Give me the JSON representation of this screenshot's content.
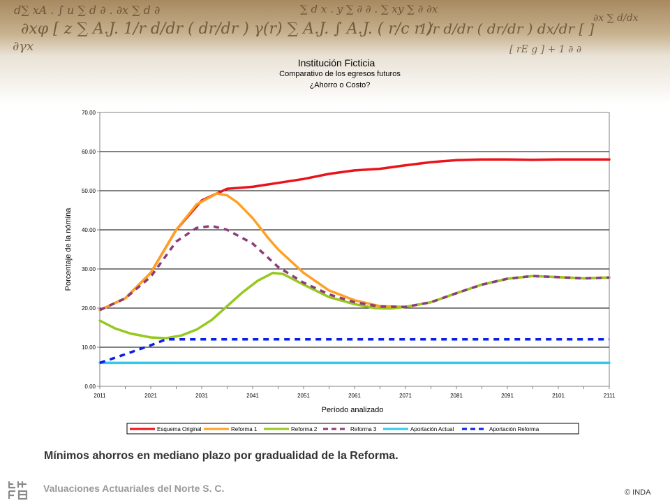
{
  "chart_data": {
    "type": "line",
    "title": "Institución Ficticia",
    "subtitle": "Comparativo de los egresos futuros",
    "subtitle2": "¿Ahorro o Costo?",
    "xlabel": "Período analizado",
    "ylabel": "Porcentaje de la nómina",
    "xlim": [
      2011,
      2111
    ],
    "ylim": [
      0,
      70
    ],
    "x_ticks": [
      "2011",
      "2021",
      "2031",
      "2041",
      "2051",
      "2061",
      "2071",
      "2081",
      "2091",
      "2101",
      "2111"
    ],
    "y_ticks": [
      "0.00",
      "10.00",
      "20.00",
      "30.00",
      "40.00",
      "50.00",
      "60.00",
      "70.00"
    ],
    "grid": true,
    "legend_position": "bottom",
    "series": [
      {
        "name": "Esquema Original",
        "color": "#e8141c",
        "dash": "solid",
        "points": [
          [
            2011,
            19.5
          ],
          [
            2016,
            22.5
          ],
          [
            2021,
            29
          ],
          [
            2026,
            40
          ],
          [
            2031,
            47.5
          ],
          [
            2036,
            50.5
          ],
          [
            2041,
            51
          ],
          [
            2046,
            52
          ],
          [
            2051,
            53
          ],
          [
            2056,
            54.3
          ],
          [
            2061,
            55.2
          ],
          [
            2066,
            55.6
          ],
          [
            2071,
            56.5
          ],
          [
            2076,
            57.3
          ],
          [
            2081,
            57.8
          ],
          [
            2086,
            58
          ],
          [
            2091,
            58
          ],
          [
            2096,
            57.9
          ],
          [
            2101,
            58
          ],
          [
            2106,
            58
          ],
          [
            2111,
            58
          ]
        ]
      },
      {
        "name": "Reforma 1",
        "color": "#ffa024",
        "dash": "solid",
        "points": [
          [
            2011,
            19.5
          ],
          [
            2016,
            22.5
          ],
          [
            2021,
            29
          ],
          [
            2026,
            40
          ],
          [
            2030,
            46.5
          ],
          [
            2034,
            49.3
          ],
          [
            2036,
            48.8
          ],
          [
            2038,
            47
          ],
          [
            2041,
            43
          ],
          [
            2044,
            38
          ],
          [
            2046,
            35
          ],
          [
            2051,
            29
          ],
          [
            2056,
            24.5
          ],
          [
            2061,
            22
          ],
          [
            2066,
            20.5
          ],
          [
            2071,
            20.3
          ],
          [
            2076,
            21.5
          ],
          [
            2081,
            23.8
          ],
          [
            2086,
            26
          ],
          [
            2091,
            27.5
          ],
          [
            2096,
            28.2
          ],
          [
            2101,
            27.9
          ],
          [
            2106,
            27.6
          ],
          [
            2111,
            27.8
          ]
        ]
      },
      {
        "name": "Reforma 2",
        "color": "#96c81e",
        "dash": "solid",
        "points": [
          [
            2011,
            16.8
          ],
          [
            2014,
            14.8
          ],
          [
            2017,
            13.5
          ],
          [
            2021,
            12.5
          ],
          [
            2024,
            12.3
          ],
          [
            2027,
            13
          ],
          [
            2030,
            14.5
          ],
          [
            2033,
            17
          ],
          [
            2036,
            20.5
          ],
          [
            2039,
            24
          ],
          [
            2042,
            27
          ],
          [
            2045,
            29
          ],
          [
            2047,
            28.7
          ],
          [
            2051,
            26
          ],
          [
            2056,
            22.8
          ],
          [
            2061,
            21
          ],
          [
            2065,
            20
          ],
          [
            2068,
            19.9
          ],
          [
            2071,
            20.3
          ],
          [
            2076,
            21.5
          ],
          [
            2081,
            23.8
          ],
          [
            2086,
            26
          ],
          [
            2091,
            27.5
          ],
          [
            2096,
            28.2
          ],
          [
            2101,
            27.9
          ],
          [
            2106,
            27.6
          ],
          [
            2111,
            27.8
          ]
        ]
      },
      {
        "name": "Reforma 3",
        "color": "#8c3c78",
        "dash": "dashed",
        "points": [
          [
            2011,
            19.5
          ],
          [
            2016,
            22.5
          ],
          [
            2021,
            28
          ],
          [
            2026,
            37
          ],
          [
            2030,
            40.5
          ],
          [
            2033,
            41
          ],
          [
            2036,
            40
          ],
          [
            2041,
            36.5
          ],
          [
            2046,
            30.5
          ],
          [
            2051,
            26.5
          ],
          [
            2056,
            23.5
          ],
          [
            2061,
            21.5
          ],
          [
            2066,
            20.4
          ],
          [
            2071,
            20.3
          ],
          [
            2076,
            21.5
          ],
          [
            2081,
            23.8
          ],
          [
            2086,
            26
          ],
          [
            2091,
            27.5
          ],
          [
            2096,
            28.2
          ],
          [
            2101,
            27.9
          ],
          [
            2106,
            27.6
          ],
          [
            2111,
            27.8
          ]
        ]
      },
      {
        "name": "Aportación Actual",
        "color": "#32c8f0",
        "dash": "solid",
        "points": [
          [
            2011,
            6
          ],
          [
            2111,
            6
          ]
        ]
      },
      {
        "name": "Aportación Reforma",
        "color": "#0a1ee6",
        "dash": "dashed",
        "points": [
          [
            2011,
            6
          ],
          [
            2016,
            8.2
          ],
          [
            2021,
            10.5
          ],
          [
            2024,
            12
          ],
          [
            2111,
            12
          ]
        ]
      }
    ]
  },
  "caption": "Mínimos ahorros en mediano plazo por gradualidad de la Reforma.",
  "footer": {
    "company": "Valuaciones Actuariales del Norte S. C.",
    "copyright": "© INDA"
  }
}
